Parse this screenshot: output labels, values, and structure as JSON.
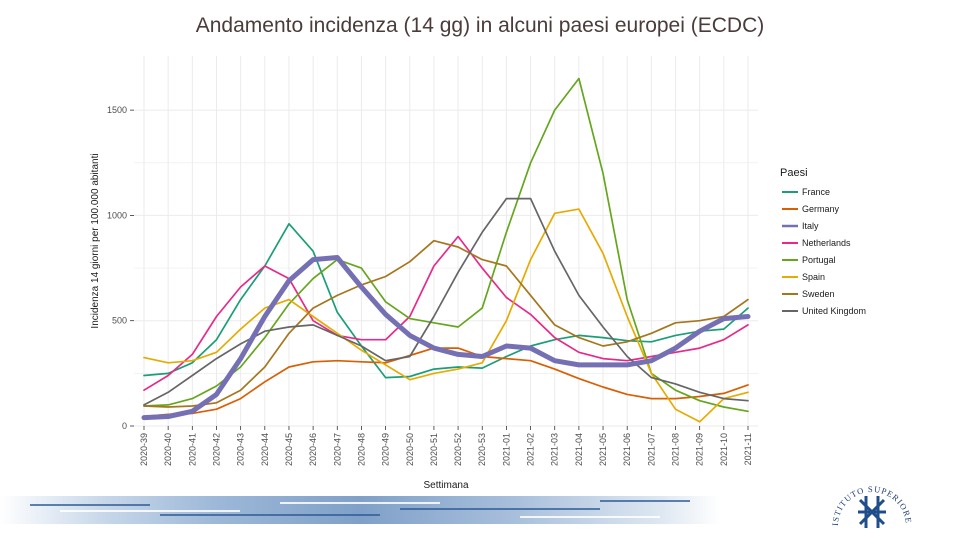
{
  "slide": {
    "title": "Andamento incidenza (14 gg) in alcuni paesi europei (ECDC)",
    "logo_text": "ISTITUTO SUPERIORE DI SANITÀ",
    "logo_icon": "iss-logo-icon"
  },
  "colors": {
    "grid": "#ebebeb",
    "axis_text": "#4d4d4d"
  },
  "chart_data": {
    "type": "line",
    "title": "",
    "xlabel": "Settimana",
    "ylabel": "Incidenza 14 giorni per 100.000 abitanti",
    "ylim": [
      0,
      1700
    ],
    "yticks": [
      0,
      500,
      1000,
      1500
    ],
    "ytick_labels": [
      "0",
      "500",
      "1000",
      "1500"
    ],
    "grid": true,
    "legend_title": "Paesi",
    "legend_position": "right",
    "categories": [
      "2020-39",
      "2020-40",
      "2020-41",
      "2020-42",
      "2020-43",
      "2020-44",
      "2020-45",
      "2020-46",
      "2020-47",
      "2020-48",
      "2020-49",
      "2020-50",
      "2020-51",
      "2020-52",
      "2020-53",
      "2021-01",
      "2021-02",
      "2021-03",
      "2021-04",
      "2021-05",
      "2021-06",
      "2021-07",
      "2021-08",
      "2021-09",
      "2021-10",
      "2021-11"
    ],
    "series": [
      {
        "name": "France",
        "color": "#1b9e77",
        "values": [
          240,
          250,
          300,
          410,
          600,
          760,
          960,
          830,
          540,
          380,
          230,
          235,
          270,
          280,
          275,
          330,
          380,
          410,
          430,
          420,
          405,
          400,
          430,
          450,
          460,
          560
        ]
      },
      {
        "name": "Germany",
        "color": "#d95f02",
        "values": [
          45,
          55,
          60,
          80,
          130,
          210,
          280,
          305,
          310,
          305,
          300,
          335,
          370,
          370,
          330,
          320,
          310,
          270,
          225,
          185,
          150,
          130,
          130,
          140,
          155,
          195
        ]
      },
      {
        "name": "Italy",
        "color": "#7570b3",
        "emphasized": true,
        "values": [
          40,
          45,
          70,
          150,
          320,
          520,
          690,
          790,
          800,
          660,
          530,
          430,
          370,
          340,
          330,
          380,
          370,
          310,
          290,
          290,
          290,
          310,
          370,
          450,
          510,
          520
        ]
      },
      {
        "name": "Netherlands",
        "color": "#e7298a",
        "values": [
          170,
          240,
          340,
          520,
          660,
          760,
          700,
          500,
          430,
          410,
          410,
          520,
          760,
          900,
          750,
          610,
          530,
          420,
          350,
          320,
          310,
          330,
          350,
          370,
          410,
          480
        ]
      },
      {
        "name": "Portugal",
        "color": "#66a61e",
        "values": [
          95,
          100,
          130,
          190,
          280,
          420,
          580,
          700,
          790,
          750,
          590,
          510,
          490,
          470,
          560,
          920,
          1250,
          1500,
          1650,
          1200,
          600,
          250,
          170,
          120,
          90,
          70
        ]
      },
      {
        "name": "Spain",
        "color": "#e6ab02",
        "values": [
          325,
          300,
          310,
          350,
          460,
          560,
          600,
          520,
          440,
          360,
          290,
          220,
          250,
          270,
          300,
          500,
          790,
          1010,
          1030,
          820,
          520,
          250,
          80,
          20,
          130,
          160
        ]
      },
      {
        "name": "Sweden",
        "color": "#a6761d",
        "values": [
          95,
          90,
          95,
          110,
          170,
          280,
          440,
          560,
          620,
          670,
          710,
          780,
          880,
          850,
          790,
          760,
          620,
          480,
          420,
          380,
          400,
          440,
          490,
          500,
          520,
          600
        ]
      },
      {
        "name": "United Kingdom",
        "color": "#666666",
        "values": [
          100,
          160,
          240,
          320,
          390,
          450,
          470,
          480,
          430,
          380,
          310,
          330,
          520,
          730,
          920,
          1080,
          1080,
          830,
          620,
          470,
          330,
          230,
          200,
          160,
          130,
          120
        ]
      }
    ]
  }
}
